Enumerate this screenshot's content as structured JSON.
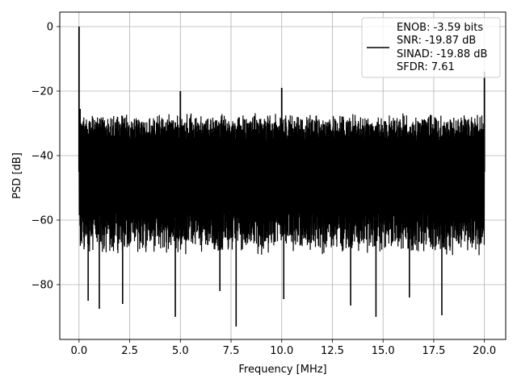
{
  "chart_data": {
    "type": "line",
    "title": "",
    "xlabel": "Frequency [MHz]",
    "ylabel": "PSD [dB]",
    "xlim": [
      -0.95,
      21.05
    ],
    "ylim": [
      -97,
      4.5
    ],
    "xticks": [
      0.0,
      2.5,
      5.0,
      7.5,
      10.0,
      12.5,
      15.0,
      17.5,
      20.0
    ],
    "xtick_labels": [
      "0.0",
      "2.5",
      "5.0",
      "7.5",
      "10.0",
      "12.5",
      "15.0",
      "17.5",
      "20.0"
    ],
    "yticks": [
      0,
      -20,
      -40,
      -60,
      -80
    ],
    "ytick_labels": [
      "0",
      "−20",
      "−40",
      "−60",
      "−80"
    ],
    "grid": true,
    "legend_position": "top-right",
    "line_color": "#000000",
    "series": [
      {
        "name": "ENOB: -3.59 bits\nSNR: -19.87 dB\nSINAD: -19.88 dB\nSFDR: 7.61",
        "legend_lines": [
          "ENOB: -3.59 bits",
          "SNR: -19.87 dB",
          "SINAD: -19.88 dB",
          "SFDR: 7.61"
        ],
        "noise_band_top": -29,
        "noise_band_bottom": -68,
        "noise_floor_mean": -45,
        "spikes": [
          {
            "x": 0.0,
            "y": 0.0
          },
          {
            "x": 0.05,
            "y": -25.5
          },
          {
            "x": 5.0,
            "y": -20.0
          },
          {
            "x": 10.0,
            "y": -19.0
          },
          {
            "x": 20.0,
            "y": -14.0
          }
        ],
        "deep_nulls": [
          {
            "x": 0.45,
            "y": -85.0
          },
          {
            "x": 1.0,
            "y": -87.5
          },
          {
            "x": 2.15,
            "y": -86.0
          },
          {
            "x": 4.75,
            "y": -90.0
          },
          {
            "x": 6.95,
            "y": -82.0
          },
          {
            "x": 7.75,
            "y": -93.0
          },
          {
            "x": 10.1,
            "y": -84.5
          },
          {
            "x": 13.4,
            "y": -86.5
          },
          {
            "x": 14.65,
            "y": -90.0
          },
          {
            "x": 16.3,
            "y": -84.0
          },
          {
            "x": 17.9,
            "y": -89.5
          }
        ]
      }
    ]
  }
}
